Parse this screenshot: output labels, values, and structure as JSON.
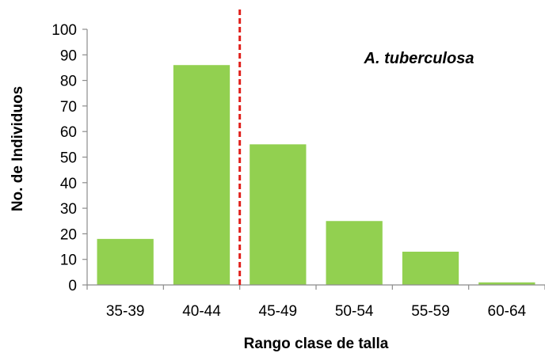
{
  "chart_data": {
    "type": "bar",
    "categories": [
      "35-39",
      "40-44",
      "45-49",
      "50-54",
      "55-59",
      "60-64"
    ],
    "values": [
      18,
      86,
      55,
      25,
      13,
      1
    ],
    "xlabel": "Rango clase de talla",
    "ylabel": "No. de Individuos",
    "ylim": [
      0,
      100
    ],
    "yticks": [
      0,
      10,
      20,
      30,
      40,
      50,
      60,
      70,
      80,
      90,
      100
    ],
    "annotation": "A. tuberculosa",
    "reference_line": {
      "between_categories": [
        "40-44",
        "45-49"
      ],
      "style": "dashed"
    },
    "bar_color": "#92d050",
    "reference_line_color": "#e0201b",
    "grid": false,
    "legend": "none"
  }
}
